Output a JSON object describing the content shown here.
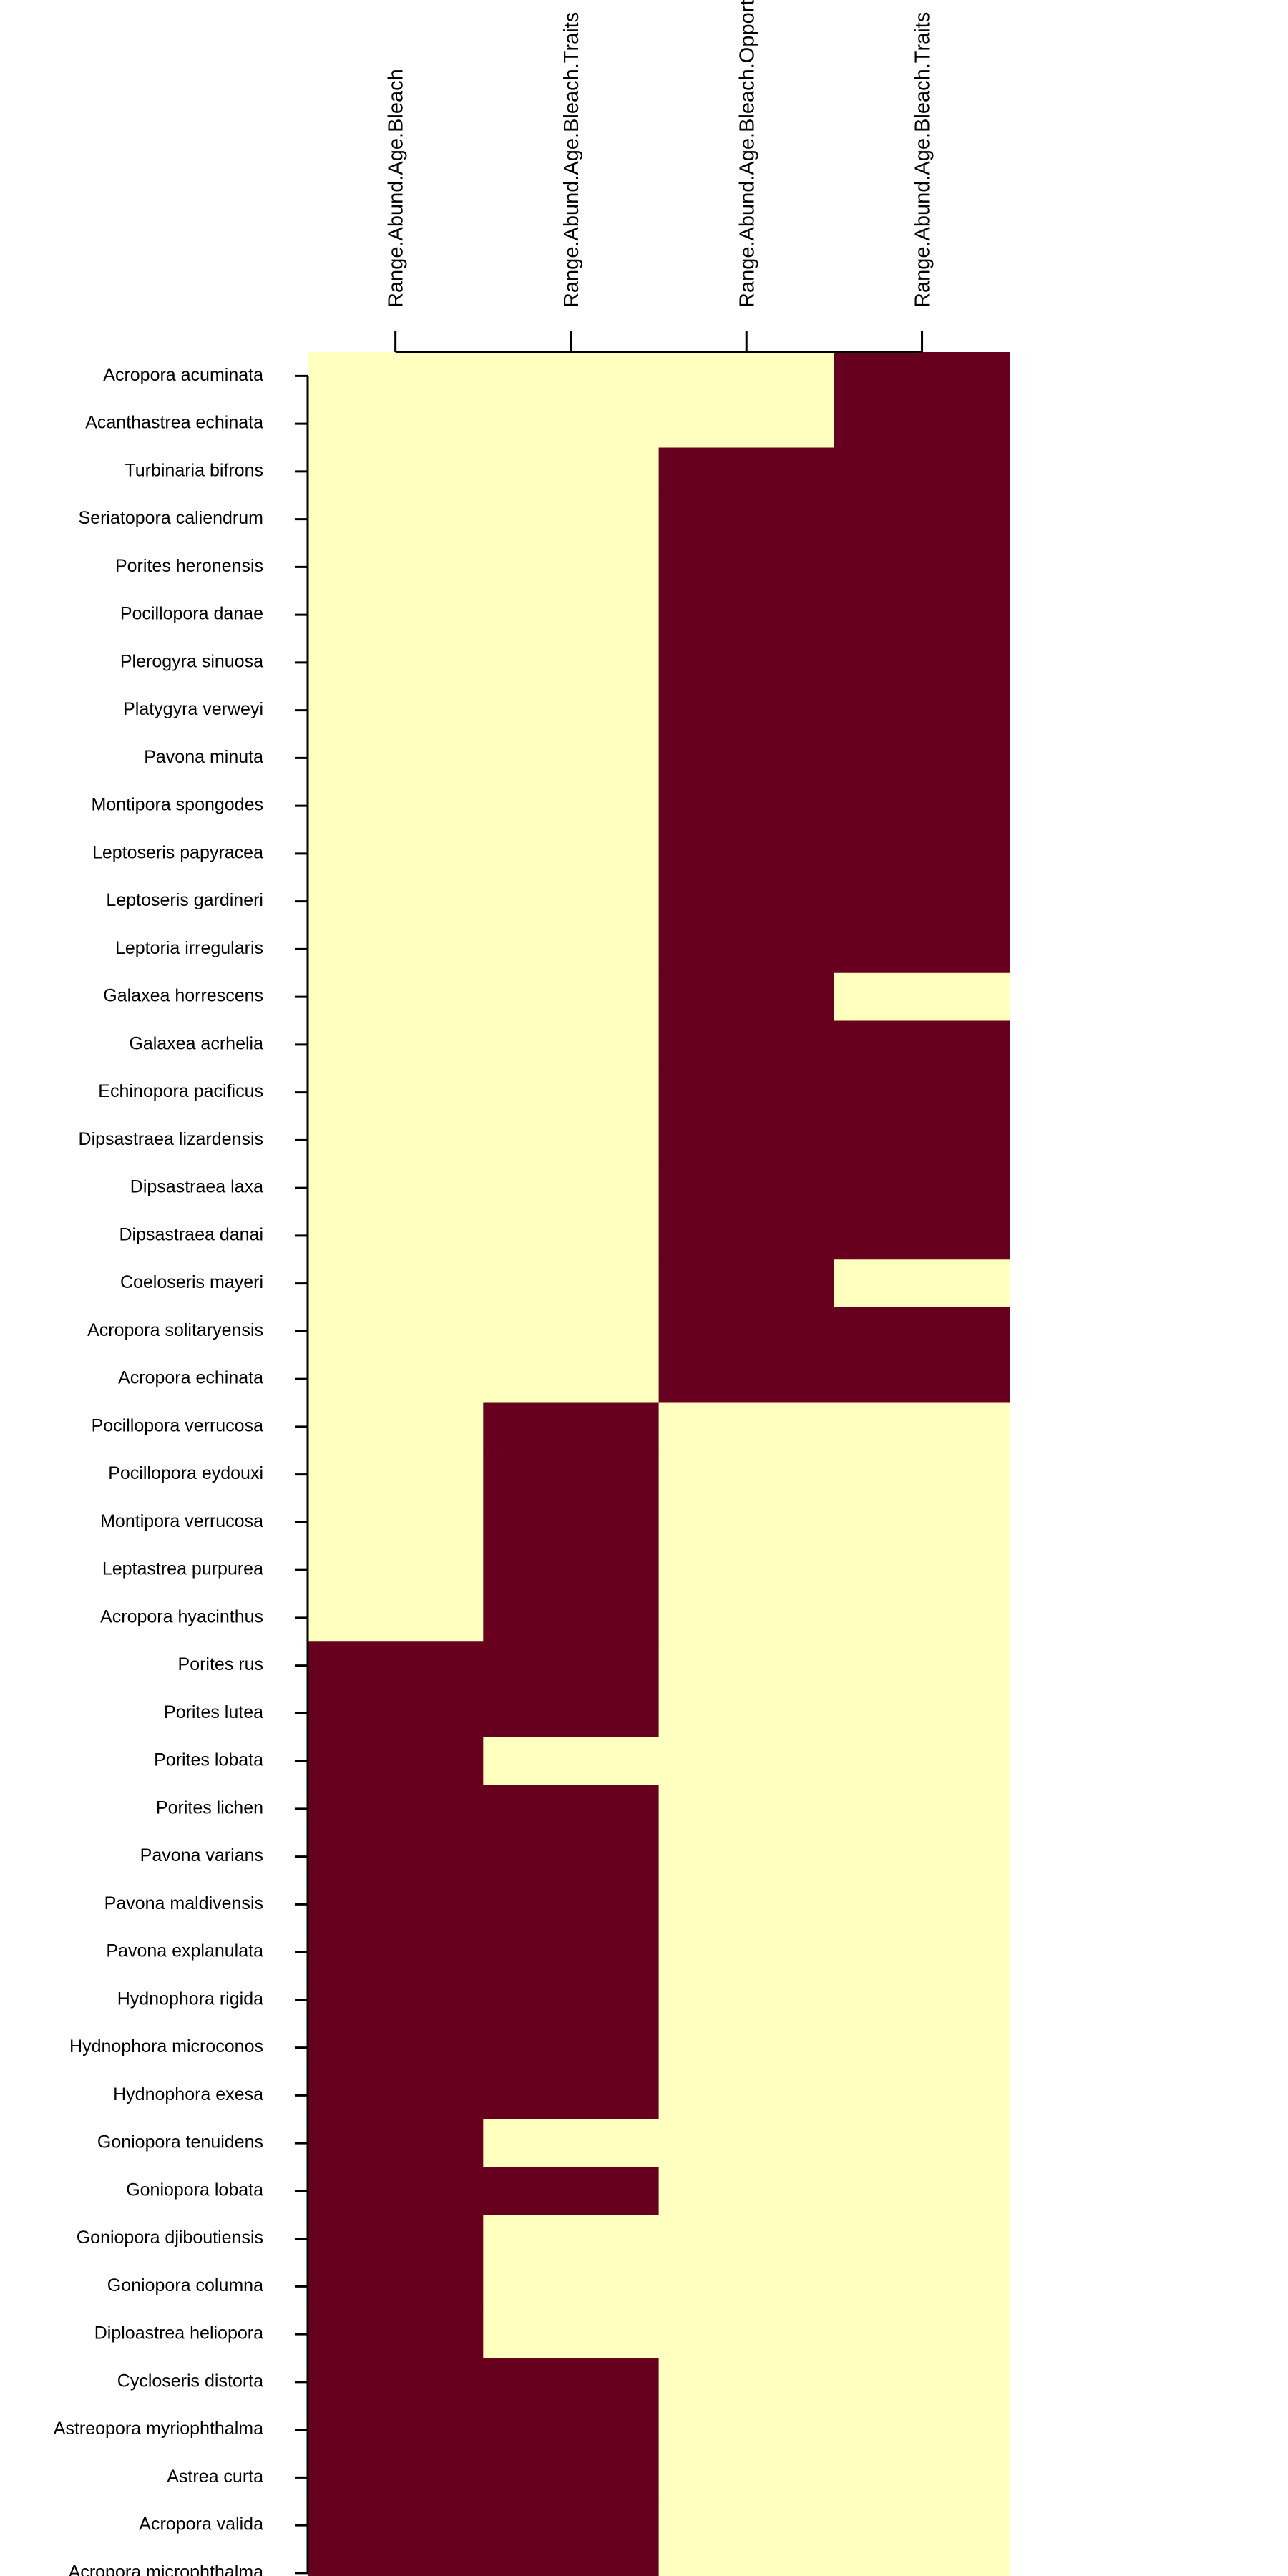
{
  "chart_data": {
    "type": "heatmap",
    "title": "",
    "xlabel": "",
    "ylabel": "",
    "columns": [
      "Range.Abund.Age.Bleach",
      "Range.Abund.Age.Bleach.Traits",
      "Range.Abund.Age.Bleach.Opportunistic",
      "Range.Abund.Age.Bleach.Traits"
    ],
    "rows": [
      "Acropora acuminata",
      "Acanthastrea echinata",
      "Turbinaria bifrons",
      "Seriatopora caliendrum",
      "Porites heronensis",
      "Pocillopora danae",
      "Plerogyra sinuosa",
      "Platygyra verweyi",
      "Pavona minuta",
      "Montipora spongodes",
      "Leptoseris papyracea",
      "Leptoseris gardineri",
      "Leptoria irregularis",
      "Galaxea horrescens",
      "Galaxea acrhelia",
      "Echinopora pacificus",
      "Dipsastraea lizardensis",
      "Dipsastraea laxa",
      "Dipsastraea danai",
      "Coeloseris mayeri",
      "Acropora solitaryensis",
      "Acropora echinata",
      "Pocillopora verrucosa",
      "Pocillopora eydouxi",
      "Montipora verrucosa",
      "Leptastrea purpurea",
      "Acropora hyacinthus",
      "Porites rus",
      "Porites lutea",
      "Porites lobata",
      "Porites lichen",
      "Pavona varians",
      "Pavona maldivensis",
      "Pavona explanulata",
      "Hydnophora rigida",
      "Hydnophora microconos",
      "Hydnophora exesa",
      "Goniopora tenuidens",
      "Goniopora lobata",
      "Goniopora djiboutiensis",
      "Goniopora columna",
      "Diploastrea heliopora",
      "Cycloseris distorta",
      "Astreopora myriophthalma",
      "Astrea curta",
      "Acropora valida",
      "Acropora microphthalma"
    ],
    "values": [
      [
        0,
        0,
        0,
        1
      ],
      [
        0,
        0,
        0,
        1
      ],
      [
        0,
        0,
        1,
        1
      ],
      [
        0,
        0,
        1,
        1
      ],
      [
        0,
        0,
        1,
        1
      ],
      [
        0,
        0,
        1,
        1
      ],
      [
        0,
        0,
        1,
        1
      ],
      [
        0,
        0,
        1,
        1
      ],
      [
        0,
        0,
        1,
        1
      ],
      [
        0,
        0,
        1,
        1
      ],
      [
        0,
        0,
        1,
        1
      ],
      [
        0,
        0,
        1,
        1
      ],
      [
        0,
        0,
        1,
        1
      ],
      [
        0,
        0,
        1,
        0
      ],
      [
        0,
        0,
        1,
        1
      ],
      [
        0,
        0,
        1,
        1
      ],
      [
        0,
        0,
        1,
        1
      ],
      [
        0,
        0,
        1,
        1
      ],
      [
        0,
        0,
        1,
        1
      ],
      [
        0,
        0,
        1,
        0
      ],
      [
        0,
        0,
        1,
        1
      ],
      [
        0,
        0,
        1,
        1
      ],
      [
        0,
        1,
        0,
        0
      ],
      [
        0,
        1,
        0,
        0
      ],
      [
        0,
        1,
        0,
        0
      ],
      [
        0,
        1,
        0,
        0
      ],
      [
        0,
        1,
        0,
        0
      ],
      [
        1,
        1,
        0,
        0
      ],
      [
        1,
        1,
        0,
        0
      ],
      [
        1,
        0,
        0,
        0
      ],
      [
        1,
        1,
        0,
        0
      ],
      [
        1,
        1,
        0,
        0
      ],
      [
        1,
        1,
        0,
        0
      ],
      [
        1,
        1,
        0,
        0
      ],
      [
        1,
        1,
        0,
        0
      ],
      [
        1,
        1,
        0,
        0
      ],
      [
        1,
        1,
        0,
        0
      ],
      [
        1,
        0,
        0,
        0
      ],
      [
        1,
        1,
        0,
        0
      ],
      [
        1,
        0,
        0,
        0
      ],
      [
        1,
        0,
        0,
        0
      ],
      [
        1,
        0,
        0,
        0
      ],
      [
        1,
        1,
        0,
        0
      ],
      [
        1,
        1,
        0,
        0
      ],
      [
        1,
        1,
        0,
        0
      ],
      [
        1,
        1,
        0,
        0
      ],
      [
        1,
        1,
        0,
        0
      ]
    ],
    "colors": {
      "0": "#FFFFBF",
      "1": "#67001F"
    },
    "legend": false,
    "grid": false
  }
}
